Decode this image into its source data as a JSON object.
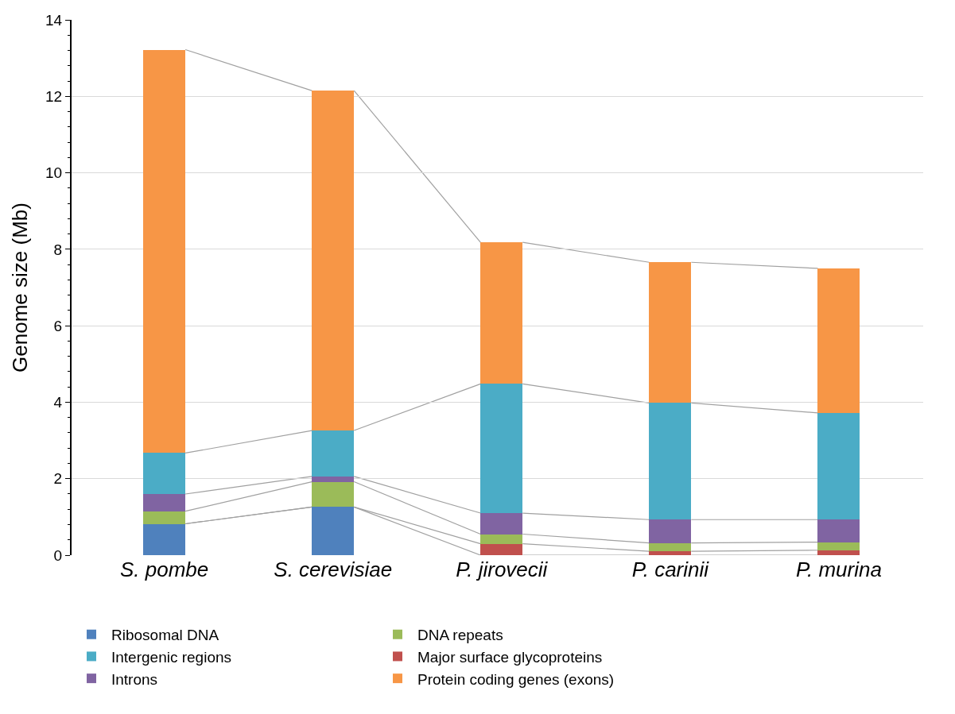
{
  "chart_data": {
    "type": "bar",
    "stacked": true,
    "ylabel": "Genome size (Mb)",
    "categories": [
      "S. pombe",
      "S. cerevisiae",
      "P. jirovecii",
      "P. carinii",
      "P. murina"
    ],
    "series": [
      {
        "name": "Ribosomal DNA",
        "color": "#4f81bd",
        "values": [
          0.82,
          1.26,
          0,
          0,
          0
        ]
      },
      {
        "name": "Major surface glycoproteins",
        "color": "#c0504d",
        "values": [
          0,
          0,
          0.3,
          0.1,
          0.13
        ]
      },
      {
        "name": "DNA repeats",
        "color": "#9bbb59",
        "values": [
          0.33,
          0.66,
          0.25,
          0.22,
          0.21
        ]
      },
      {
        "name": "Introns",
        "color": "#8064a2",
        "values": [
          0.45,
          0.14,
          0.55,
          0.61,
          0.59
        ]
      },
      {
        "name": "Intergenic regions",
        "color": "#4bacc6",
        "values": [
          1.07,
          1.2,
          3.38,
          3.05,
          2.79
        ]
      },
      {
        "name": "Protein coding genes (exons)",
        "color": "#f79646",
        "values": [
          10.55,
          8.89,
          3.7,
          3.68,
          3.78
        ]
      }
    ],
    "ylim": [
      0,
      14
    ],
    "yticks": [
      0,
      2,
      4,
      6,
      8,
      10,
      12,
      14
    ],
    "grid": "y",
    "legend": "bottom"
  }
}
